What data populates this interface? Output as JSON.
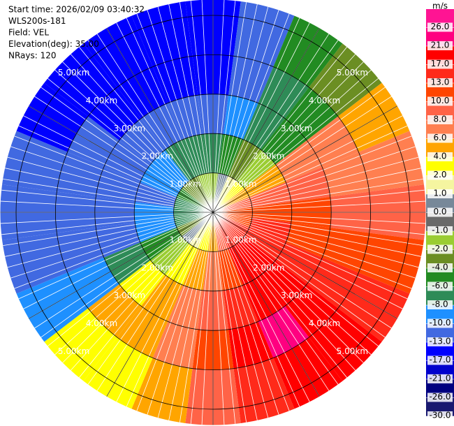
{
  "chart_data": {
    "type": "ppi",
    "header": [
      "Start time: 2026/02/09 03:40:32",
      "WLS200s-181",
      "Field: VEL",
      "Elevation(deg): 35.00",
      "NRays: 120"
    ],
    "rings": [
      {
        "value": 1,
        "label": "1.00km"
      },
      {
        "value": 2,
        "label": "2.00km"
      },
      {
        "value": 3,
        "label": "3.00km"
      },
      {
        "value": 4,
        "label": "4.00km"
      },
      {
        "value": 5,
        "label": "5.00km"
      }
    ],
    "range_edges": [
      0,
      1,
      2,
      3,
      4,
      5.4
    ],
    "azimuths": [
      0,
      15,
      30,
      45,
      60,
      75,
      90,
      105,
      120,
      135,
      150,
      165,
      180,
      195,
      210,
      225,
      240,
      255,
      270,
      285,
      300,
      315,
      330,
      345
    ],
    "values": [
      [
        -2,
        -8,
        -13,
        -17,
        -17
      ],
      [
        0,
        -6,
        -10,
        -13,
        -13
      ],
      [
        1,
        -4,
        -8,
        -8,
        -6
      ],
      [
        2,
        -2,
        -6,
        -6,
        -4
      ],
      [
        4,
        4,
        6,
        6,
        4
      ],
      [
        8,
        8,
        8,
        6,
        6
      ],
      [
        10,
        10,
        10,
        8,
        8
      ],
      [
        10,
        13,
        10,
        10,
        10
      ],
      [
        13,
        13,
        13,
        13,
        13
      ],
      [
        13,
        17,
        17,
        17,
        17
      ],
      [
        13,
        17,
        17,
        21,
        17
      ],
      [
        8,
        10,
        13,
        17,
        13
      ],
      [
        4,
        6,
        8,
        10,
        8
      ],
      [
        2,
        4,
        6,
        6,
        4
      ],
      [
        1,
        2,
        4,
        4,
        2
      ],
      [
        0,
        -2,
        2,
        4,
        2
      ],
      [
        -4,
        -6,
        -8,
        -10,
        -10
      ],
      [
        -8,
        -10,
        -13,
        -13,
        -13
      ],
      [
        -8,
        -10,
        -13,
        -13,
        -13
      ],
      [
        -8,
        -13,
        -13,
        -13,
        -13
      ],
      [
        -6,
        -10,
        -13,
        -13,
        -17
      ],
      [
        -4,
        -10,
        -13,
        -17,
        -17
      ],
      [
        -4,
        -8,
        -13,
        -17,
        -17
      ],
      [
        -2,
        -8,
        -13,
        -17,
        -17
      ]
    ],
    "colorbar": {
      "unit": "m/s",
      "ticks": [
        {
          "value": 26,
          "label": "26.0"
        },
        {
          "value": 21,
          "label": "21.0"
        },
        {
          "value": 17,
          "label": "17.0"
        },
        {
          "value": 13,
          "label": "13.0"
        },
        {
          "value": 10,
          "label": "10.0"
        },
        {
          "value": 8,
          "label": "8.0"
        },
        {
          "value": 6,
          "label": "6.0"
        },
        {
          "value": 4,
          "label": "4.0"
        },
        {
          "value": 2,
          "label": "2.0"
        },
        {
          "value": 1,
          "label": "1.0"
        },
        {
          "value": 0,
          "label": "0.0"
        },
        {
          "value": -1,
          "label": "-1.0"
        },
        {
          "value": -2,
          "label": "-2.0"
        },
        {
          "value": -4,
          "label": "-4.0"
        },
        {
          "value": -6,
          "label": "-6.0"
        },
        {
          "value": -8,
          "label": "-8.0"
        },
        {
          "value": -10,
          "label": "-10.0"
        },
        {
          "value": -13,
          "label": "-13.0"
        },
        {
          "value": -17,
          "label": "-17.0"
        },
        {
          "value": -21,
          "label": "-21.0"
        },
        {
          "value": -26,
          "label": "-26.0"
        },
        {
          "value": -30,
          "label": "-30.0"
        }
      ],
      "colors": [
        "#ff1493",
        "#ff0080",
        "#ff0000",
        "#ff2a1a",
        "#ff4500",
        "#ff6347",
        "#ff7f50",
        "#ffa500",
        "#ffff00",
        "#f5f5a0",
        "#778899",
        "#696969",
        "#9acd32",
        "#6b8e23",
        "#228b22",
        "#2e8b57",
        "#1e90ff",
        "#4169e1",
        "#0000ff",
        "#0000cd",
        "#000080",
        "#191970"
      ]
    }
  }
}
